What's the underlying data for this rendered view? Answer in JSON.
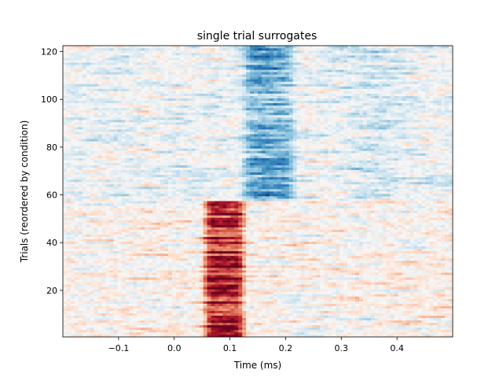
{
  "chart_data": {
    "type": "heatmap",
    "title": "single trial surrogates",
    "xlabel": "Time (ms)",
    "ylabel": "Trials (reordered by condition)",
    "xlim": [
      -0.2,
      0.5
    ],
    "ylim": [
      0.5,
      122.5
    ],
    "xticks": [
      -0.1,
      0.0,
      0.1,
      0.2,
      0.3,
      0.4
    ],
    "xtick_labels": [
      "−0.1",
      "0.0",
      "0.1",
      "0.2",
      "0.3",
      "0.4"
    ],
    "yticks": [
      20,
      40,
      60,
      80,
      100,
      120
    ],
    "ytick_labels": [
      "20",
      "40",
      "60",
      "80",
      "100",
      "120"
    ],
    "n_trials": 122,
    "n_times": 100,
    "colormap": "RdBu_r",
    "conditions": [
      {
        "trials": [
          1,
          57
        ],
        "response_window": [
          0.05,
          0.13
        ],
        "sign": "positive"
      },
      {
        "trials": [
          58,
          122
        ],
        "response_window": [
          0.12,
          0.22
        ],
        "sign": "negative"
      }
    ],
    "grid": false
  }
}
